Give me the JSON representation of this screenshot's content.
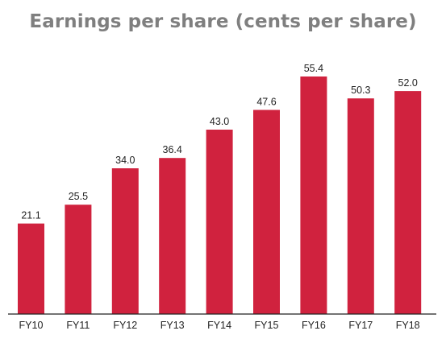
{
  "chart_data": {
    "type": "bar",
    "title": "Earnings per share (cents per share)",
    "categories": [
      "FY10",
      "FY11",
      "FY12",
      "FY13",
      "FY14",
      "FY15",
      "FY16",
      "FY17",
      "FY18"
    ],
    "values": [
      21.1,
      25.5,
      34.0,
      36.4,
      43.0,
      47.6,
      55.4,
      50.3,
      52.0
    ],
    "value_labels": [
      "21.1",
      "25.5",
      "34.0",
      "36.4",
      "43.0",
      "47.6",
      "55.4",
      "50.3",
      "52.0"
    ],
    "xlabel": "",
    "ylabel": "",
    "ylim": [
      0,
      55.4
    ],
    "grid": false,
    "legend": "none",
    "bar_color": "#d0223e",
    "axis_color": "#222222"
  }
}
